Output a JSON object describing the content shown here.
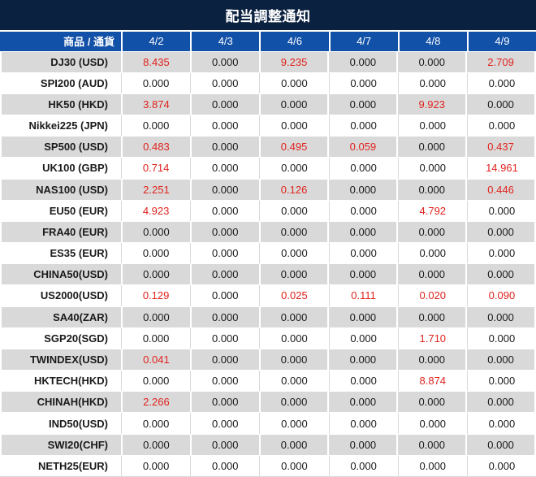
{
  "chart_data": {
    "type": "table",
    "title": "配当調整通知",
    "columns": [
      "商品 / 通貨",
      "4/2",
      "4/3",
      "4/6",
      "4/7",
      "4/8",
      "4/9"
    ],
    "rows": [
      {
        "product": "DJ30 (USD)",
        "values": [
          "8.435",
          "0.000",
          "9.235",
          "0.000",
          "0.000",
          "2.709"
        ]
      },
      {
        "product": "SPI200 (AUD)",
        "values": [
          "0.000",
          "0.000",
          "0.000",
          "0.000",
          "0.000",
          "0.000"
        ]
      },
      {
        "product": "HK50 (HKD)",
        "values": [
          "3.874",
          "0.000",
          "0.000",
          "0.000",
          "9.923",
          "0.000"
        ]
      },
      {
        "product": "Nikkei225 (JPN)",
        "values": [
          "0.000",
          "0.000",
          "0.000",
          "0.000",
          "0.000",
          "0.000"
        ]
      },
      {
        "product": "SP500 (USD)",
        "values": [
          "0.483",
          "0.000",
          "0.495",
          "0.059",
          "0.000",
          "0.437"
        ]
      },
      {
        "product": "UK100 (GBP)",
        "values": [
          "0.714",
          "0.000",
          "0.000",
          "0.000",
          "0.000",
          "14.961"
        ]
      },
      {
        "product": "NAS100 (USD)",
        "values": [
          "2.251",
          "0.000",
          "0.126",
          "0.000",
          "0.000",
          "0.446"
        ]
      },
      {
        "product": "EU50 (EUR)",
        "values": [
          "4.923",
          "0.000",
          "0.000",
          "0.000",
          "4.792",
          "0.000"
        ]
      },
      {
        "product": "FRA40 (EUR)",
        "values": [
          "0.000",
          "0.000",
          "0.000",
          "0.000",
          "0.000",
          "0.000"
        ]
      },
      {
        "product": "ES35 (EUR)",
        "values": [
          "0.000",
          "0.000",
          "0.000",
          "0.000",
          "0.000",
          "0.000"
        ]
      },
      {
        "product": "CHINA50(USD)",
        "values": [
          "0.000",
          "0.000",
          "0.000",
          "0.000",
          "0.000",
          "0.000"
        ]
      },
      {
        "product": "US2000(USD)",
        "values": [
          "0.129",
          "0.000",
          "0.025",
          "0.111",
          "0.020",
          "0.090"
        ]
      },
      {
        "product": "SA40(ZAR)",
        "values": [
          "0.000",
          "0.000",
          "0.000",
          "0.000",
          "0.000",
          "0.000"
        ]
      },
      {
        "product": "SGP20(SGD)",
        "values": [
          "0.000",
          "0.000",
          "0.000",
          "0.000",
          "1.710",
          "0.000"
        ]
      },
      {
        "product": "TWINDEX(USD)",
        "values": [
          "0.041",
          "0.000",
          "0.000",
          "0.000",
          "0.000",
          "0.000"
        ]
      },
      {
        "product": "HKTECH(HKD)",
        "values": [
          "0.000",
          "0.000",
          "0.000",
          "0.000",
          "8.874",
          "0.000"
        ]
      },
      {
        "product": "CHINAH(HKD)",
        "values": [
          "2.266",
          "0.000",
          "0.000",
          "0.000",
          "0.000",
          "0.000"
        ]
      },
      {
        "product": "IND50(USD)",
        "values": [
          "0.000",
          "0.000",
          "0.000",
          "0.000",
          "0.000",
          "0.000"
        ]
      },
      {
        "product": "SWI20(CHF)",
        "values": [
          "0.000",
          "0.000",
          "0.000",
          "0.000",
          "0.000",
          "0.000"
        ]
      },
      {
        "product": "NETH25(EUR)",
        "values": [
          "0.000",
          "0.000",
          "0.000",
          "0.000",
          "0.000",
          "0.000"
        ]
      }
    ],
    "layout_hints": {
      "zero_value_display": "0.000",
      "nonzero_values_color": "red",
      "stripe_pattern": "odd rows gray, even rows white"
    },
    "colors": {
      "title_bg": "#0b2140",
      "header_bg": "#1151a8",
      "header_text": "#ffffff",
      "stripe": "#d9d9d9",
      "value_zero": "#1a1a1a",
      "value_red": "#e0231e"
    }
  }
}
